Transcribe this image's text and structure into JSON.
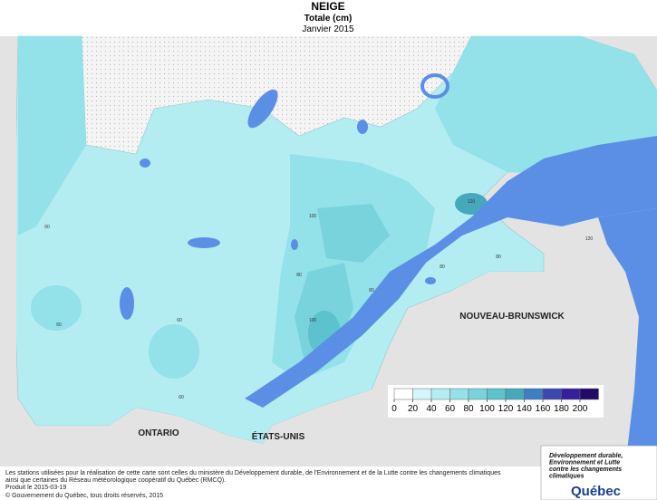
{
  "header": {
    "title": "NEIGE",
    "subtitle": "Totale (cm)",
    "date": "Janvier 2015"
  },
  "legend": {
    "ticks": [
      0,
      20,
      40,
      60,
      80,
      100,
      120,
      140,
      160,
      180,
      200
    ],
    "colors": [
      "#ffffff",
      "#d2f6f9",
      "#b3edf2",
      "#93e1e9",
      "#78d3dd",
      "#5cc2cd",
      "#45a9bb",
      "#3d7fc0",
      "#3d49b2",
      "#35209a",
      "#220a66"
    ]
  },
  "regions": [
    "ONTARIO",
    "ÉTATS-UNIS",
    "NOUVEAU-BRUNSWICK"
  ],
  "contour_labels": [
    "60",
    "60",
    "60",
    "60",
    "80",
    "80",
    "80",
    "100",
    "100",
    "120",
    "120",
    "80"
  ],
  "footer": {
    "lines": [
      "Les stations utilisées pour la réalisation de cette carte sont celles du ministère du Développement durable, de l'Environnement et de la Lutte contre les changements climatiques",
      "ainsi que certaines du Réseau météorologique coopératif du Québec (RMCQ).",
      "Produit le 2015-03-19",
      "© Gouvernement du Québec, tous droits réservés, 2015"
    ]
  },
  "logo": {
    "lines": [
      "Développement durable,",
      "Environnement et Lutte",
      "contre les changements",
      "climatiques"
    ],
    "name": "Québec"
  }
}
